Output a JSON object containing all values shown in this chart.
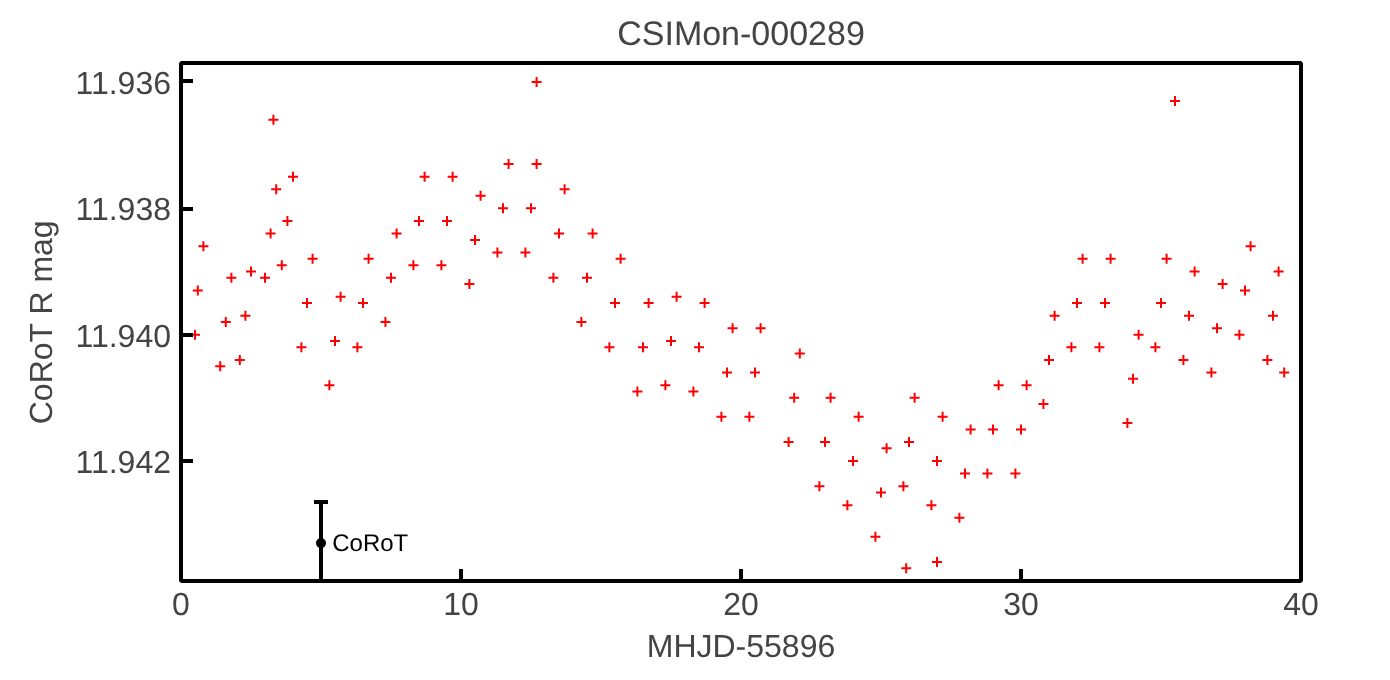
{
  "chart_data": {
    "type": "scatter",
    "title": "CSIMon-000289",
    "xlabel": "MHJD-55896",
    "ylabel": "CoRoT R mag",
    "xlim": [
      0,
      40
    ],
    "xticks": [
      0,
      10,
      20,
      30,
      40
    ],
    "ylim": [
      11.9439,
      11.9357
    ],
    "yticks": [
      11.936,
      11.938,
      {
        "value": 11.94,
        "label": "11.940"
      },
      11.942
    ],
    "grid": false,
    "legend": false,
    "marker": "cross",
    "series": [
      {
        "color": "#ff0000",
        "x": [
          0.6,
          1.6,
          2.3,
          3.2,
          3.8,
          4.5,
          5.5,
          6.5,
          7.5,
          8.5,
          9.5,
          10.5,
          11.5,
          12.5,
          13.5,
          14.5,
          15.5,
          16.5,
          17.5,
          18.5,
          19.5,
          20.5,
          21.9,
          23,
          24,
          25,
          26,
          27,
          28,
          29,
          30,
          31,
          32,
          33,
          34,
          35,
          36,
          37,
          38,
          39,
          39.4,
          0.8,
          1.8,
          2.5,
          3.4,
          4.0,
          4.7,
          5.7,
          6.7,
          7.7,
          8.7,
          9.7,
          10.7,
          11.7,
          12.7,
          13.7,
          14.7,
          15.7,
          16.7,
          17.7,
          18.7,
          19.7,
          20.7,
          22.1,
          23.2,
          24.2,
          25.2,
          26.2,
          27.2,
          28.2,
          29.2,
          30.2,
          31.2,
          32.2,
          33.2,
          34.2,
          35.2,
          36.2,
          37.2,
          38.2,
          39.2,
          0.5,
          1.4,
          2.1,
          3.0,
          3.6,
          4.3,
          5.3,
          6.3,
          7.3,
          8.3,
          9.3,
          10.3,
          11.3,
          12.3,
          13.3,
          14.3,
          15.3,
          16.3,
          17.3,
          18.3,
          19.3,
          20.3,
          21.7,
          22.8,
          23.8,
          24.8,
          25.8,
          26.8,
          27.8,
          28.8,
          29.8,
          30.8,
          31.8,
          32.8,
          33.8,
          34.8,
          35.8,
          36.8,
          37.8,
          38.8,
          3.3,
          12.7,
          35.5,
          25.9,
          27.0
        ],
        "values": [
          11.9393,
          11.9398,
          11.9397,
          11.9384,
          11.9382,
          11.9395,
          11.9401,
          11.9395,
          11.9391,
          11.9382,
          11.9382,
          11.9385,
          11.938,
          11.938,
          11.9384,
          11.9391,
          11.9395,
          11.9402,
          11.9401,
          11.9402,
          11.9406,
          11.9406,
          11.941,
          11.9417,
          11.942,
          11.9425,
          11.9417,
          11.942,
          11.9422,
          11.9415,
          11.9415,
          11.9404,
          11.9395,
          11.9395,
          11.9407,
          11.9395,
          11.9397,
          11.9399,
          11.9393,
          11.9397,
          11.9406,
          11.9386,
          11.9391,
          11.939,
          11.9377,
          11.9375,
          11.9388,
          11.9394,
          11.9388,
          11.9384,
          11.9375,
          11.9375,
          11.9378,
          11.9373,
          11.9373,
          11.9377,
          11.9384,
          11.9388,
          11.9395,
          11.9394,
          11.9395,
          11.9399,
          11.9399,
          11.9403,
          11.941,
          11.9413,
          11.9418,
          11.941,
          11.9413,
          11.9415,
          11.9408,
          11.9408,
          11.9397,
          11.9388,
          11.9388,
          11.94,
          11.9388,
          11.939,
          11.9392,
          11.9386,
          11.939,
          11.94,
          11.9405,
          11.9404,
          11.9391,
          11.9389,
          11.9402,
          11.9408,
          11.9402,
          11.9398,
          11.9389,
          11.9389,
          11.9392,
          11.9387,
          11.9387,
          11.9391,
          11.9398,
          11.9402,
          11.9409,
          11.9408,
          11.9409,
          11.9413,
          11.9413,
          11.9417,
          11.9424,
          11.9427,
          11.9432,
          11.9424,
          11.9427,
          11.9429,
          11.9422,
          11.9422,
          11.9411,
          11.9402,
          11.9402,
          11.9414,
          11.9402,
          11.9404,
          11.9406,
          11.94,
          11.9404,
          11.9366,
          11.936,
          11.9363,
          11.9437,
          11.9436
        ]
      },
      {
        "name": "CoRoT",
        "color": "#000000",
        "marker": "circle",
        "x": [
          5
        ],
        "values": [
          11.9433
        ],
        "errors": [
          0.00065
        ]
      }
    ]
  }
}
